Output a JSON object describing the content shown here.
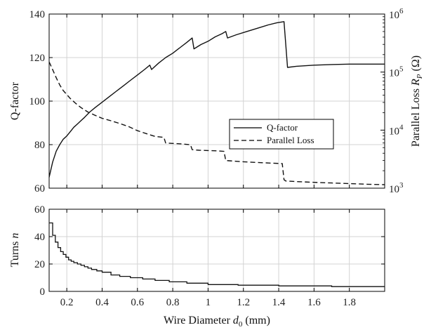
{
  "chart_data": [
    {
      "type": "line",
      "panel": "top",
      "xlabel": "",
      "ylabel_left": "Q-factor",
      "ylabel_right_prefix": "Parallel Loss ",
      "ylabel_right_symbol": "R",
      "ylabel_right_sub": "P",
      "ylabel_right_unit": " (Ω)",
      "xlim": [
        0.1,
        2.0
      ],
      "ylim_left": [
        60,
        140
      ],
      "ylim_right": [
        1000,
        1000000
      ],
      "right_scale": "log",
      "grid": true,
      "legend_position": "center-right",
      "x_ticks": [
        "0.2",
        "0.4",
        "0.6",
        "0.8",
        "1",
        "1.2",
        "1.4",
        "1.6",
        "1.8"
      ],
      "x_tick_values": [
        0.2,
        0.4,
        0.6,
        0.8,
        1.0,
        1.2,
        1.4,
        1.6,
        1.8
      ],
      "y_ticks_left": [
        "60",
        "80",
        "100",
        "120",
        "140"
      ],
      "y_tick_values_left": [
        60,
        80,
        100,
        120,
        140
      ],
      "y_ticks_right_base": "10",
      "y_ticks_right_exp": [
        "3",
        "4",
        "5",
        "6"
      ],
      "y_tick_values_right": [
        1000,
        10000,
        100000,
        1000000
      ],
      "series": [
        {
          "name": "Q-factor",
          "axis": "left",
          "style": "solid",
          "x": [
            0.1,
            0.12,
            0.14,
            0.16,
            0.18,
            0.2,
            0.22,
            0.24,
            0.26,
            0.28,
            0.3,
            0.33,
            0.36,
            0.4,
            0.44,
            0.48,
            0.52,
            0.56,
            0.6,
            0.64,
            0.67,
            0.68,
            0.72,
            0.76,
            0.8,
            0.84,
            0.88,
            0.91,
            0.92,
            0.96,
            1.0,
            1.04,
            1.08,
            1.1,
            1.11,
            1.16,
            1.22,
            1.28,
            1.34,
            1.39,
            1.43,
            1.45,
            1.5,
            1.6,
            1.7,
            1.8,
            1.9,
            2.0
          ],
          "y": [
            65,
            72,
            77,
            80,
            82.5,
            84,
            86,
            88,
            89.5,
            91,
            92.5,
            95,
            97,
            99.5,
            102,
            104.5,
            107,
            109.5,
            112,
            114.5,
            116.5,
            114.5,
            117.5,
            120,
            122,
            124.5,
            127,
            129,
            124,
            126,
            127.5,
            129.5,
            131,
            132,
            129,
            130.5,
            132,
            133.5,
            135,
            136,
            136.5,
            115.5,
            116,
            116.5,
            116.8,
            117,
            117,
            117
          ]
        },
        {
          "name": "Parallel Loss",
          "axis": "right",
          "style": "dashed",
          "x": [
            0.1,
            0.12,
            0.14,
            0.16,
            0.18,
            0.2,
            0.22,
            0.25,
            0.28,
            0.32,
            0.36,
            0.4,
            0.45,
            0.5,
            0.55,
            0.6,
            0.65,
            0.7,
            0.75,
            0.76,
            0.8,
            0.85,
            0.9,
            0.91,
            0.95,
            1.0,
            1.05,
            1.09,
            1.1,
            1.2,
            1.3,
            1.42,
            1.43,
            1.44,
            1.5,
            1.6,
            1.7,
            1.8,
            1.9,
            2.0
          ],
          "y": [
            150000,
            110000,
            80000,
            60000,
            48000,
            41000,
            35000,
            29000,
            24500,
            20500,
            18000,
            16000,
            14500,
            13000,
            11500,
            9800,
            8700,
            7800,
            7500,
            6000,
            5900,
            5800,
            5600,
            4600,
            4500,
            4450,
            4400,
            4300,
            3000,
            2850,
            2750,
            2650,
            1400,
            1330,
            1300,
            1260,
            1230,
            1200,
            1170,
            1150
          ]
        }
      ]
    },
    {
      "type": "line",
      "panel": "bottom",
      "xlabel_prefix": "Wire Diameter ",
      "xlabel_symbol": "d",
      "xlabel_sub": "0",
      "xlabel_unit": " (mm)",
      "ylabel_prefix": "Turns ",
      "ylabel_symbol": "n",
      "xlim": [
        0.1,
        2.0
      ],
      "ylim": [
        0,
        60
      ],
      "grid": true,
      "x_ticks": [
        "0.2",
        "0.4",
        "0.6",
        "0.8",
        "1",
        "1.2",
        "1.4",
        "1.6",
        "1.8"
      ],
      "x_tick_values": [
        0.2,
        0.4,
        0.6,
        0.8,
        1.0,
        1.2,
        1.4,
        1.6,
        1.8
      ],
      "y_ticks": [
        "0",
        "20",
        "40",
        "60"
      ],
      "y_tick_values": [
        0,
        20,
        40,
        60
      ],
      "series": [
        {
          "style": "solid-stairs",
          "x": [
            0.1,
            0.12,
            0.135,
            0.15,
            0.165,
            0.18,
            0.195,
            0.21,
            0.225,
            0.24,
            0.26,
            0.28,
            0.3,
            0.32,
            0.34,
            0.37,
            0.4,
            0.45,
            0.5,
            0.56,
            0.63,
            0.7,
            0.78,
            0.88,
            1.0,
            1.17,
            1.4,
            1.7,
            2.0
          ],
          "y": [
            50,
            41,
            36,
            32,
            29,
            27,
            25,
            23,
            22,
            21,
            20,
            19,
            18,
            17,
            16,
            15,
            14,
            12,
            11,
            10,
            9,
            8,
            7,
            6,
            5,
            4.5,
            4,
            3.5,
            3.5
          ]
        }
      ]
    }
  ]
}
